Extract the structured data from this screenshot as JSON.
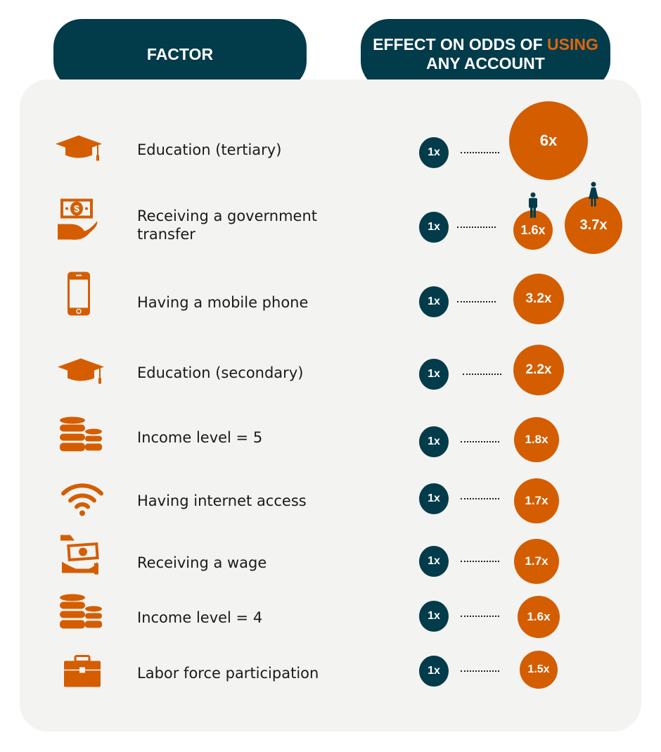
{
  "header": {
    "factor": "FACTOR",
    "effect_prefix": "EFFECT ON ODDS OF ",
    "effect_highlight": "USING",
    "effect_suffix": "ANY ACCOUNT"
  },
  "colors": {
    "dark": "#023b4a",
    "accent": "#d45d00",
    "panel": "#f3f3f1"
  },
  "baseline_label": "1x",
  "chart_data": {
    "type": "bubble",
    "baseline": 1,
    "rows": [
      {
        "factor": "Education (tertiary)",
        "icon": "graduation-cap-icon",
        "values": [
          {
            "value": 6,
            "label": "6x"
          }
        ]
      },
      {
        "factor": "Receiving a government transfer",
        "icon": "money-in-hand-icon",
        "values": [
          {
            "value": 1.6,
            "label": "1.6x",
            "group": "man-icon"
          },
          {
            "value": 3.7,
            "label": "3.7x",
            "group": "woman-icon"
          }
        ]
      },
      {
        "factor": "Having a mobile phone",
        "icon": "mobile-phone-icon",
        "values": [
          {
            "value": 3.2,
            "label": "3.2x"
          }
        ]
      },
      {
        "factor": "Education (secondary)",
        "icon": "graduation-cap-icon",
        "values": [
          {
            "value": 2.2,
            "label": "2.2x"
          }
        ]
      },
      {
        "factor": "Income level = 5",
        "icon": "coin-stack-icon",
        "values": [
          {
            "value": 1.8,
            "label": "1.8x"
          }
        ]
      },
      {
        "factor": "Having internet access",
        "icon": "wifi-icon",
        "values": [
          {
            "value": 1.7,
            "label": "1.7x"
          }
        ]
      },
      {
        "factor": "Receiving a wage",
        "icon": "wage-payment-icon",
        "values": [
          {
            "value": 1.7,
            "label": "1.7x"
          }
        ]
      },
      {
        "factor": "Income level = 4",
        "icon": "coin-stack-icon",
        "values": [
          {
            "value": 1.6,
            "label": "1.6x"
          }
        ]
      },
      {
        "factor": "Labor force participation",
        "icon": "briefcase-icon",
        "values": [
          {
            "value": 1.5,
            "label": "1.5x"
          }
        ]
      }
    ]
  }
}
